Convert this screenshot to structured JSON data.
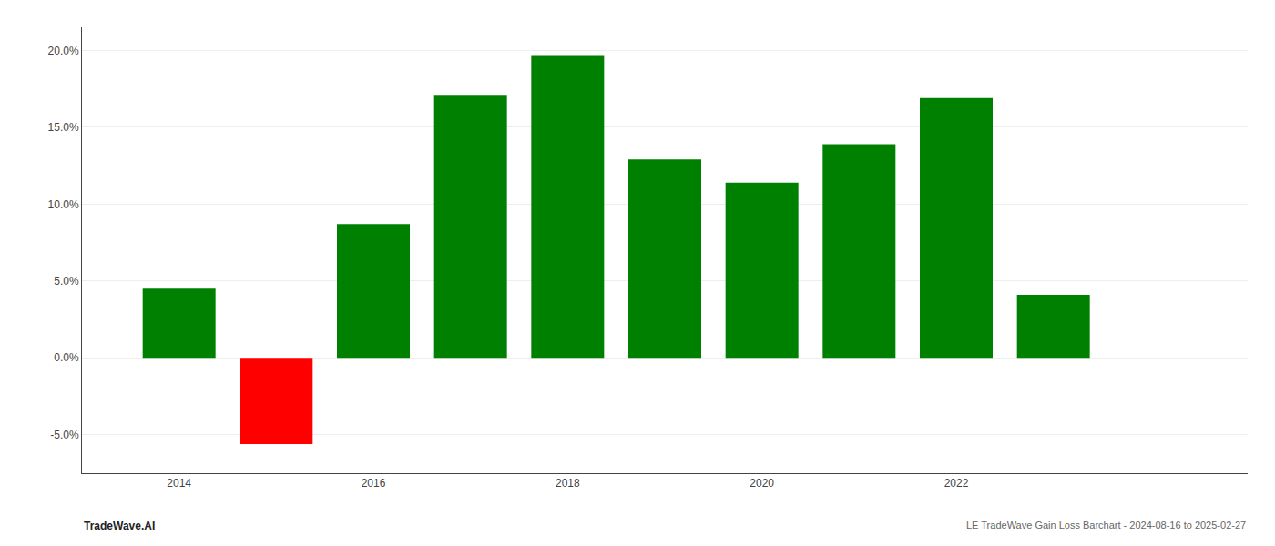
{
  "chart_data": {
    "type": "bar",
    "x": [
      2014,
      2015,
      2016,
      2017,
      2018,
      2019,
      2020,
      2021,
      2022,
      2023
    ],
    "values": [
      0.045,
      -0.056,
      0.087,
      0.171,
      0.197,
      0.129,
      0.114,
      0.139,
      0.169,
      0.041
    ],
    "colors": [
      "#008000",
      "#ff0000",
      "#008000",
      "#008000",
      "#008000",
      "#008000",
      "#008000",
      "#008000",
      "#008000",
      "#008000"
    ],
    "xlim": [
      2013.0,
      2025.0
    ],
    "xticks": [
      2014,
      2016,
      2018,
      2020,
      2022
    ],
    "ylim": [
      -0.075,
      0.215
    ],
    "yticks": [
      {
        "value": -0.05,
        "label": "-5.0%"
      },
      {
        "value": 0.0,
        "label": "0.0%"
      },
      {
        "value": 0.05,
        "label": "5.0%"
      },
      {
        "value": 0.1,
        "label": "10.0%"
      },
      {
        "value": 0.15,
        "label": "15.0%"
      },
      {
        "value": 0.2,
        "label": "20.0%"
      }
    ],
    "grid": true,
    "annotations": [
      {
        "text": "TradeWave.AI"
      },
      {
        "text": "LE TradeWave Gain Loss Barchart - 2024-08-16 to 2025-02-27"
      }
    ]
  }
}
